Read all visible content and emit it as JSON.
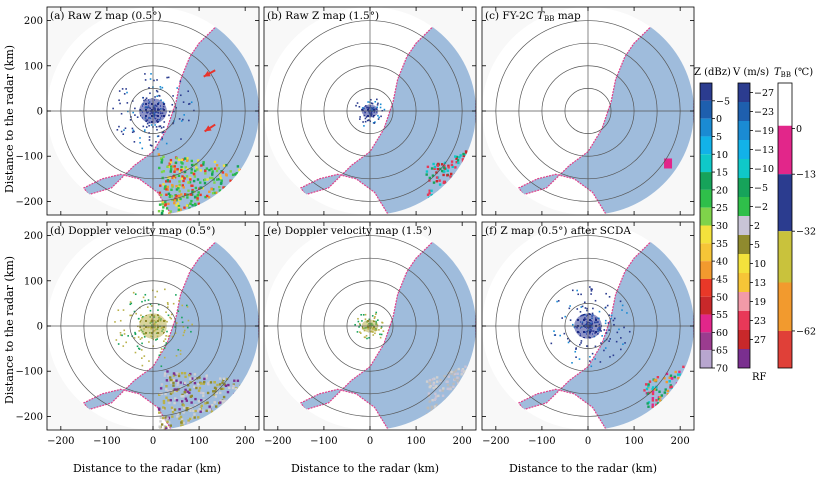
{
  "figure": {
    "y_axis_label": "Distance to the radar (km)",
    "x_axis_label": "Distance to the radar (km)"
  },
  "chart_data": [
    {
      "type": "radar_ppi",
      "id": "a",
      "title": "(a) Raw Z map (0.5°)",
      "xlim": [
        -230,
        230
      ],
      "ylim": [
        -230,
        230
      ],
      "rings_km": [
        50,
        100,
        150,
        200
      ],
      "x_ticks": [
        -200,
        -100,
        0,
        100,
        200
      ],
      "y_ticks": [
        200,
        100,
        0,
        -100,
        -200
      ],
      "show_x_ticks": false,
      "show_y_ticks": true,
      "annotations": [
        "red arrow at (≈105 km, ≈75 km)",
        "red arrow at (≈110 km, ≈-45 km)"
      ]
    },
    {
      "type": "radar_ppi",
      "id": "b",
      "title": "(b) Raw Z map (1.5°)",
      "xlim": [
        -230,
        230
      ],
      "ylim": [
        -230,
        230
      ],
      "rings_km": [
        50,
        100,
        150,
        200
      ],
      "x_ticks": [
        -200,
        -100,
        0,
        100,
        200
      ],
      "y_ticks": [
        200,
        100,
        0,
        -100,
        -200
      ],
      "show_x_ticks": false,
      "show_y_ticks": false
    },
    {
      "type": "radar_ppi",
      "id": "c",
      "title_prefix": "(c) FY-2C ",
      "title_var": "T",
      "title_sub": "BB",
      "title_suffix": " map",
      "xlim": [
        -230,
        230
      ],
      "ylim": [
        -230,
        230
      ],
      "rings_km": [
        50,
        100,
        150,
        200
      ],
      "x_ticks": [
        -200,
        -100,
        0,
        100,
        200
      ],
      "y_ticks": [
        200,
        100,
        0,
        -100,
        -200
      ],
      "show_x_ticks": false,
      "show_y_ticks": false
    },
    {
      "type": "radar_ppi",
      "id": "d",
      "title": "(d) Doppler velocity map (0.5°)",
      "xlim": [
        -230,
        230
      ],
      "ylim": [
        -230,
        230
      ],
      "rings_km": [
        50,
        100,
        150,
        200
      ],
      "x_ticks": [
        -200,
        -100,
        0,
        100,
        200
      ],
      "y_ticks": [
        200,
        100,
        0,
        -100,
        -200
      ],
      "show_x_ticks": true,
      "show_y_ticks": true
    },
    {
      "type": "radar_ppi",
      "id": "e",
      "title": "(e) Doppler velocity map (1.5°)",
      "xlim": [
        -230,
        230
      ],
      "ylim": [
        -230,
        230
      ],
      "rings_km": [
        50,
        100,
        150,
        200
      ],
      "x_ticks": [
        -200,
        -100,
        0,
        100,
        200
      ],
      "y_ticks": [
        200,
        100,
        0,
        -100,
        -200
      ],
      "show_x_ticks": true,
      "show_y_ticks": false
    },
    {
      "type": "radar_ppi",
      "id": "f",
      "title": "(f) Z map (0.5°) after SCDA",
      "xlim": [
        -230,
        230
      ],
      "ylim": [
        -230,
        230
      ],
      "rings_km": [
        50,
        100,
        150,
        200
      ],
      "x_ticks": [
        -200,
        -100,
        0,
        100,
        200
      ],
      "y_ticks": [
        200,
        100,
        0,
        -100,
        -200
      ],
      "show_x_ticks": true,
      "show_y_ticks": false
    }
  ],
  "colorbars": {
    "z": {
      "title": "Z (dBz)",
      "labels": [
        "−5",
        "0",
        "5",
        "10",
        "15",
        "20",
        "25",
        "30",
        "35",
        "40",
        "45",
        "50",
        "55",
        "60",
        "65",
        "70"
      ],
      "colors": [
        "#2b3c8f",
        "#1e5fae",
        "#1a8bd3",
        "#12b2e8",
        "#0fc8c8",
        "#16a35a",
        "#2fbf4a",
        "#7fd34a",
        "#f3e23c",
        "#f6c537",
        "#f29a2e",
        "#e83828",
        "#c8282a",
        "#e2268a",
        "#9b3c8f",
        "#b8a6cf"
      ]
    },
    "v": {
      "title": "V (m/s)",
      "labels": [
        "−27",
        "−23",
        "−19",
        "−13",
        "−10",
        "−5",
        "−2",
        "2",
        "5",
        "10",
        "13",
        "19",
        "23",
        "27"
      ],
      "bottom_label": "RF",
      "colors": [
        "#2b3c8f",
        "#1e5fae",
        "#1a8bd3",
        "#12b2e8",
        "#0fc8c8",
        "#16a35a",
        "#2fbf4a",
        "#c8c4d6",
        "#8f8a2e",
        "#f3e23c",
        "#f6c537",
        "#f29aa8",
        "#e83858",
        "#c8282a",
        "#7a2f8f"
      ]
    },
    "t": {
      "title_var": "T",
      "title_sub": "BB",
      "title_unit": " (℃)",
      "labels": [
        "0",
        "−13",
        "−32",
        "−62"
      ],
      "colors": [
        "#ffffff",
        "#e2268a",
        "#2b3c8f",
        "#c9c23c",
        "#f29a2e",
        "#e04038"
      ]
    }
  }
}
